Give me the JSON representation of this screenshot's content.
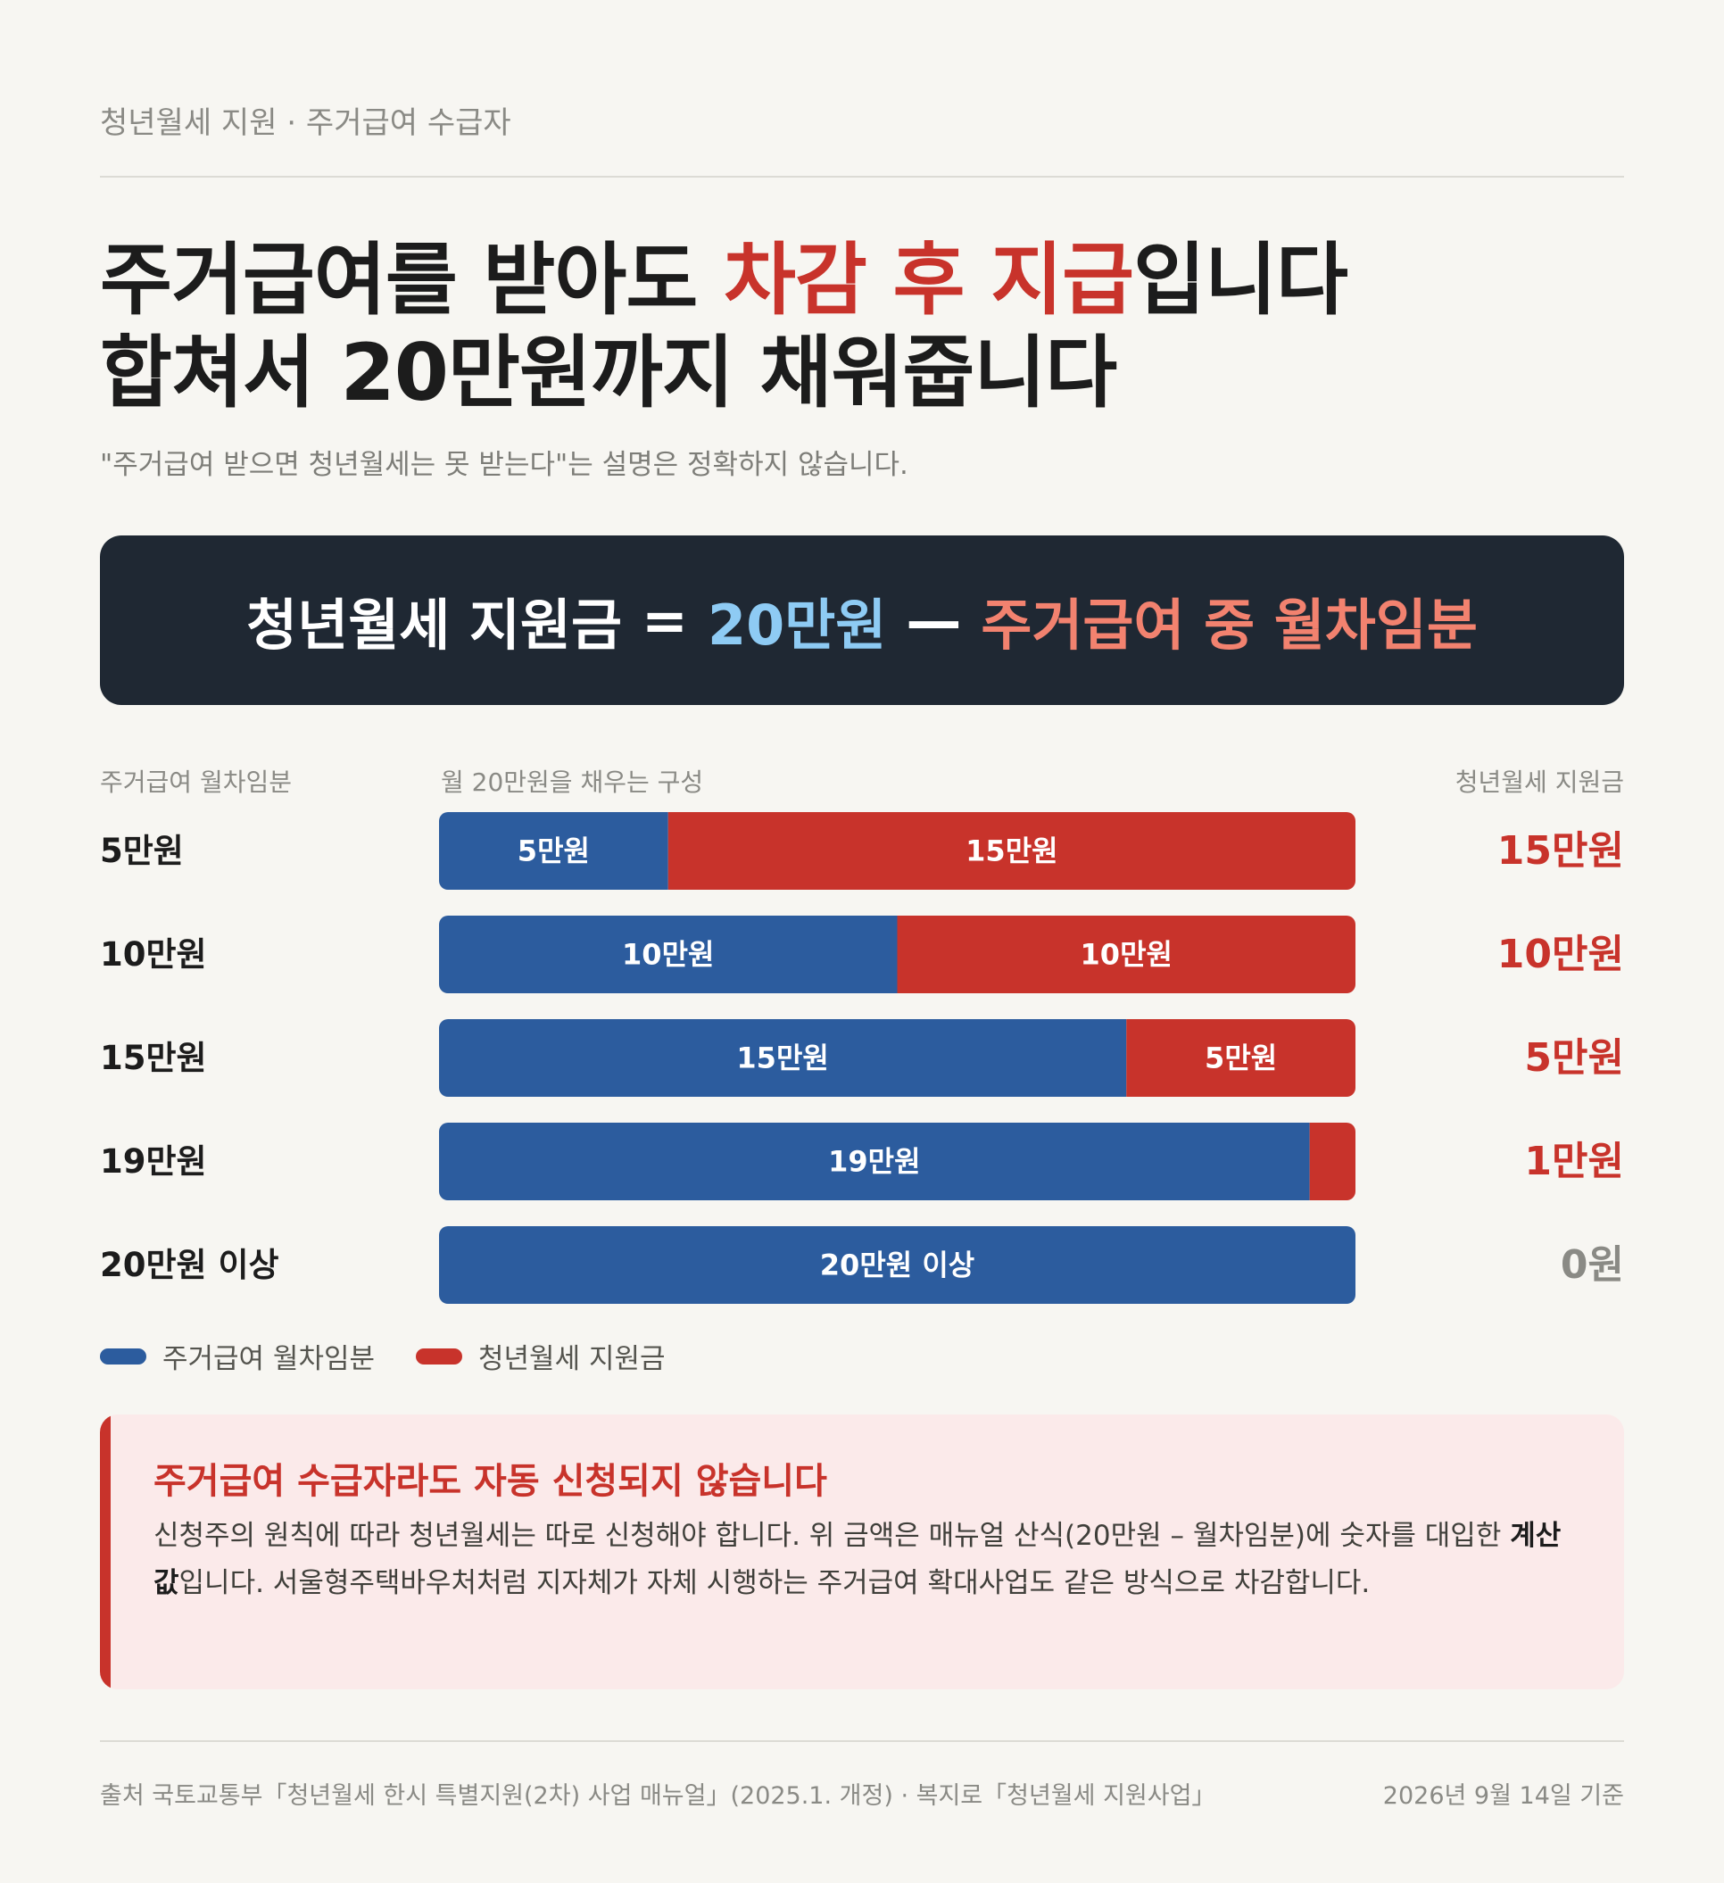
{
  "kicker": "청년월세 지원 · 주거급여 수급자",
  "headline": {
    "line1_pre": "주거급여를 받아도 ",
    "line1_accent": "차감 후 지급",
    "line1_post": "입니다",
    "line2": "합쳐서 20만원까지 채워줍니다"
  },
  "subline": "\"주거급여 받으면 청년월세는 못 받는다\"는 설명은 정확하지 않습니다.",
  "formula": {
    "left": "청년월세 지원금",
    "eq": "=",
    "amount": "20만원",
    "minus": "—",
    "right": "주거급여 중 월차임분"
  },
  "column_headers": {
    "left": "주거급여 월차임분",
    "middle": "월 20만원을 채우는 구성",
    "right": "청년월세 지원금"
  },
  "chart_data": {
    "type": "bar",
    "stacked": true,
    "orientation": "horizontal",
    "unit": "만원",
    "xlim": [
      0,
      20
    ],
    "categories": [
      "5만원",
      "10만원",
      "15만원",
      "19만원",
      "20만원 이상"
    ],
    "series": [
      {
        "name": "주거급여 월차임분",
        "color": "#2c5c9e",
        "values": [
          5,
          10,
          15,
          19,
          20
        ],
        "labels": [
          "5만원",
          "10만원",
          "15만원",
          "19만원",
          "20만원 이상"
        ]
      },
      {
        "name": "청년월세 지원금",
        "color": "#c8332b",
        "values": [
          15,
          10,
          5,
          1,
          0
        ],
        "labels": [
          "15만원",
          "10만원",
          "5만원",
          "",
          ""
        ]
      }
    ],
    "right_values": [
      "15만원",
      "10만원",
      "5만원",
      "1만원",
      "0원"
    ],
    "right_colors": [
      "#c8332b",
      "#c8332b",
      "#c8332b",
      "#c8332b",
      "#8a8a85"
    ]
  },
  "callout": {
    "title": "주거급여 수급자라도 자동 신청되지 않습니다",
    "body_pre": "신청주의 원칙에 따라 청년월세는 따로 신청해야 합니다. 위 금액은 매뉴얼 산식(20만원 – 월차임분)에 숫자를 대입한 ",
    "body_bold": "계산값",
    "body_post": "입니다. 서울형주택바우처처럼 지자체가 자체 시행하는 주거급여 확대사업도 같은 방식으로 차감합니다."
  },
  "footer": {
    "source": "출처 국토교통부「청년월세 한시 특별지원(2차) 사업 매뉴얼」(2025.1. 개정) · 복지로「청년월세 지원사업」",
    "date": "2026년 9월 14일 기준"
  }
}
